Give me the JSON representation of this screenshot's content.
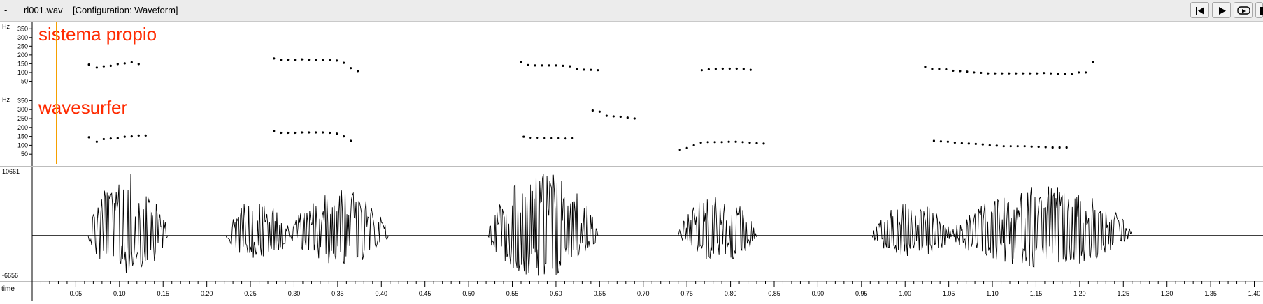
{
  "window": {
    "dash": "-",
    "filename": "rl001.wav",
    "configuration": "[Configuration: Waveform]"
  },
  "toolbar": {
    "buttons": [
      {
        "name": "skip-to-start-icon"
      },
      {
        "name": "play-icon"
      },
      {
        "name": "loop-play-icon"
      },
      {
        "name": "stop-icon"
      }
    ]
  },
  "panes": [
    {
      "overlay_label": "sistema propio",
      "y_unit": "Hz",
      "y_ticks": [
        "350",
        "300",
        "250",
        "200",
        "150",
        "100",
        "50"
      ],
      "y_values": [
        350,
        300,
        250,
        200,
        150,
        100,
        50
      ],
      "y_range": [
        0,
        375
      ],
      "pitch_points": [
        [
          0.065,
          145
        ],
        [
          0.074,
          128
        ],
        [
          0.082,
          135
        ],
        [
          0.09,
          138
        ],
        [
          0.098,
          148
        ],
        [
          0.106,
          152
        ],
        [
          0.114,
          158
        ],
        [
          0.122,
          148
        ],
        [
          0.277,
          180
        ],
        [
          0.285,
          172
        ],
        [
          0.293,
          173
        ],
        [
          0.301,
          172
        ],
        [
          0.309,
          175
        ],
        [
          0.317,
          173
        ],
        [
          0.325,
          172
        ],
        [
          0.333,
          170
        ],
        [
          0.341,
          172
        ],
        [
          0.349,
          168
        ],
        [
          0.357,
          155
        ],
        [
          0.365,
          125
        ],
        [
          0.373,
          108
        ],
        [
          0.56,
          160
        ],
        [
          0.568,
          142
        ],
        [
          0.576,
          140
        ],
        [
          0.584,
          140
        ],
        [
          0.592,
          140
        ],
        [
          0.6,
          140
        ],
        [
          0.608,
          138
        ],
        [
          0.616,
          135
        ],
        [
          0.624,
          118
        ],
        [
          0.632,
          116
        ],
        [
          0.64,
          115
        ],
        [
          0.648,
          113
        ],
        [
          0.767,
          113
        ],
        [
          0.775,
          118
        ],
        [
          0.783,
          120
        ],
        [
          0.791,
          122
        ],
        [
          0.799,
          122
        ],
        [
          0.807,
          122
        ],
        [
          0.815,
          120
        ],
        [
          0.823,
          115
        ],
        [
          1.023,
          132
        ],
        [
          1.031,
          120
        ],
        [
          1.039,
          120
        ],
        [
          1.047,
          118
        ],
        [
          1.055,
          110
        ],
        [
          1.063,
          108
        ],
        [
          1.071,
          105
        ],
        [
          1.079,
          100
        ],
        [
          1.087,
          98
        ],
        [
          1.095,
          95
        ],
        [
          1.103,
          95
        ],
        [
          1.111,
          95
        ],
        [
          1.119,
          95
        ],
        [
          1.127,
          95
        ],
        [
          1.135,
          95
        ],
        [
          1.143,
          95
        ],
        [
          1.151,
          95
        ],
        [
          1.159,
          97
        ],
        [
          1.167,
          95
        ],
        [
          1.175,
          93
        ],
        [
          1.183,
          92
        ],
        [
          1.191,
          90
        ],
        [
          1.199,
          100
        ],
        [
          1.207,
          100
        ],
        [
          1.215,
          160
        ]
      ]
    },
    {
      "overlay_label": "wavesurfer",
      "y_unit": "Hz",
      "y_ticks": [
        "350",
        "300",
        "250",
        "200",
        "150",
        "100",
        "50"
      ],
      "y_values": [
        350,
        300,
        250,
        200,
        150,
        100,
        50
      ],
      "y_range": [
        0,
        375
      ],
      "pitch_points": [
        [
          0.065,
          145
        ],
        [
          0.074,
          120
        ],
        [
          0.082,
          135
        ],
        [
          0.09,
          138
        ],
        [
          0.098,
          140
        ],
        [
          0.106,
          148
        ],
        [
          0.114,
          150
        ],
        [
          0.122,
          155
        ],
        [
          0.13,
          155
        ],
        [
          0.277,
          180
        ],
        [
          0.285,
          170
        ],
        [
          0.293,
          170
        ],
        [
          0.301,
          170
        ],
        [
          0.309,
          172
        ],
        [
          0.317,
          172
        ],
        [
          0.325,
          172
        ],
        [
          0.333,
          172
        ],
        [
          0.341,
          170
        ],
        [
          0.349,
          165
        ],
        [
          0.357,
          150
        ],
        [
          0.365,
          125
        ],
        [
          0.563,
          148
        ],
        [
          0.571,
          142
        ],
        [
          0.579,
          142
        ],
        [
          0.587,
          140
        ],
        [
          0.595,
          140
        ],
        [
          0.603,
          140
        ],
        [
          0.611,
          138
        ],
        [
          0.619,
          140
        ],
        [
          0.642,
          295
        ],
        [
          0.65,
          288
        ],
        [
          0.658,
          265
        ],
        [
          0.666,
          262
        ],
        [
          0.674,
          260
        ],
        [
          0.682,
          255
        ],
        [
          0.69,
          250
        ],
        [
          0.742,
          75
        ],
        [
          0.75,
          85
        ],
        [
          0.758,
          100
        ],
        [
          0.766,
          115
        ],
        [
          0.774,
          118
        ],
        [
          0.782,
          118
        ],
        [
          0.79,
          118
        ],
        [
          0.798,
          120
        ],
        [
          0.806,
          120
        ],
        [
          0.814,
          118
        ],
        [
          0.822,
          115
        ],
        [
          0.83,
          112
        ],
        [
          0.838,
          110
        ],
        [
          1.033,
          125
        ],
        [
          1.041,
          122
        ],
        [
          1.049,
          120
        ],
        [
          1.057,
          115
        ],
        [
          1.065,
          112
        ],
        [
          1.073,
          110
        ],
        [
          1.081,
          108
        ],
        [
          1.089,
          105
        ],
        [
          1.097,
          100
        ],
        [
          1.105,
          98
        ],
        [
          1.113,
          95
        ],
        [
          1.121,
          95
        ],
        [
          1.129,
          95
        ],
        [
          1.137,
          95
        ],
        [
          1.145,
          93
        ],
        [
          1.153,
          92
        ],
        [
          1.161,
          90
        ],
        [
          1.169,
          88
        ],
        [
          1.177,
          88
        ],
        [
          1.185,
          88
        ]
      ]
    }
  ],
  "waveform": {
    "max_label": "10661",
    "min_label": "-6656",
    "amp_max": 10661,
    "amp_min": -6656,
    "segments": [
      {
        "start": 0.064,
        "end": 0.155,
        "peak": 10000
      },
      {
        "start": 0.222,
        "end": 0.296,
        "peak": 6000
      },
      {
        "start": 0.296,
        "end": 0.408,
        "peak": 7500
      },
      {
        "start": 0.522,
        "end": 0.648,
        "peak": 10500
      },
      {
        "start": 0.74,
        "end": 0.83,
        "peak": 6500
      },
      {
        "start": 0.962,
        "end": 1.053,
        "peak": 5500
      },
      {
        "start": 1.053,
        "end": 1.26,
        "peak": 8000
      }
    ]
  },
  "timeline": {
    "label": "time",
    "range": [
      0.0,
      1.41
    ],
    "ticks": [
      "0.05",
      "0.10",
      "0.15",
      "0.20",
      "0.25",
      "0.30",
      "0.35",
      "0.40",
      "0.45",
      "0.50",
      "0.55",
      "0.60",
      "0.65",
      "0.70",
      "0.75",
      "0.80",
      "0.85",
      "0.90",
      "0.95",
      "1.00",
      "1.05",
      "1.10",
      "1.15",
      "1.20",
      "1.25",
      "1.30",
      "1.35",
      "1.40"
    ],
    "tick_values": [
      0.05,
      0.1,
      0.15,
      0.2,
      0.25,
      0.3,
      0.35,
      0.4,
      0.45,
      0.5,
      0.55,
      0.6,
      0.65,
      0.7,
      0.75,
      0.8,
      0.85,
      0.9,
      0.95,
      1.0,
      1.05,
      1.1,
      1.15,
      1.2,
      1.25,
      1.3,
      1.35,
      1.4
    ]
  },
  "cursor": {
    "time": 0.027,
    "color": "#f5a000"
  },
  "colors": {
    "overlay_text": "#ff2a00",
    "cursor": "#f5a000",
    "background": "#ffffff",
    "titlebar": "#ececec"
  }
}
